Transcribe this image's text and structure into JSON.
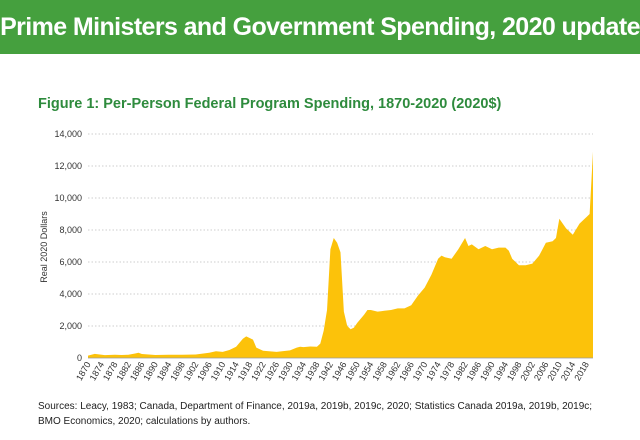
{
  "header": {
    "title": "Prime Ministers and Government Spending, 2020 update",
    "figure_title": "Figure 1: Per-Person Federal Program Spending, 1870-2020 (2020$)"
  },
  "sources": {
    "line1": "Sources: Leacy, 1983; Canada, Department of Finance, 2019a, 2019b, 2019c, 2020;  Statistics Canada 2019a, 2019b, 2019c;",
    "line2": "BMO Economics, 2020; calculations by authors."
  },
  "colors": {
    "banner": "#45a03e",
    "figure_title": "#2e8b3d",
    "area_fill": "#fcc20a",
    "grid": "#bfbfbf"
  },
  "chart_data": {
    "type": "area",
    "title": "Figure 1: Per-Person Federal Program Spending, 1870-2020 (2020$)",
    "xlabel": "",
    "ylabel": "Real 2020 Dollars",
    "xlim": [
      1870,
      2020
    ],
    "ylim": [
      0,
      14000
    ],
    "x_ticks": [
      "1870",
      "1874",
      "1878",
      "1882",
      "1886",
      "1890",
      "1894",
      "1898",
      "1902",
      "1906",
      "1910",
      "1914",
      "1918",
      "1922",
      "1926",
      "1930",
      "1934",
      "1938",
      "1942",
      "1946",
      "1950",
      "1954",
      "1958",
      "1962",
      "1966",
      "1970",
      "1974",
      "1978",
      "1982",
      "1986",
      "1990",
      "1994",
      "1998",
      "2002",
      "2006",
      "2010",
      "2014",
      "2018"
    ],
    "y_ticks": [
      "0",
      "2,000",
      "4,000",
      "6,000",
      "8,000",
      "10,000",
      "12,000",
      "14,000"
    ],
    "y_tick_values": [
      0,
      2000,
      4000,
      6000,
      8000,
      10000,
      12000,
      14000
    ],
    "grid": "horizontal dotted",
    "legend": "none",
    "x": [
      1870,
      1872,
      1875,
      1878,
      1880,
      1882,
      1884,
      1885,
      1886,
      1888,
      1890,
      1894,
      1898,
      1902,
      1906,
      1908,
      1910,
      1912,
      1914,
      1916,
      1917,
      1918,
      1919,
      1920,
      1922,
      1926,
      1930,
      1932,
      1933,
      1934,
      1936,
      1938,
      1939,
      1940,
      1941,
      1942,
      1943,
      1944,
      1945,
      1946,
      1947,
      1948,
      1949,
      1950,
      1952,
      1953,
      1954,
      1956,
      1958,
      1960,
      1962,
      1964,
      1966,
      1968,
      1970,
      1972,
      1974,
      1975,
      1976,
      1978,
      1980,
      1982,
      1983,
      1984,
      1986,
      1988,
      1990,
      1992,
      1994,
      1995,
      1996,
      1998,
      2000,
      2002,
      2004,
      2005,
      2006,
      2008,
      2009,
      2010,
      2012,
      2014,
      2016,
      2018,
      2019,
      2020
    ],
    "values": [
      150,
      260,
      180,
      200,
      190,
      200,
      280,
      330,
      250,
      220,
      190,
      200,
      200,
      220,
      330,
      420,
      380,
      500,
      700,
      1200,
      1350,
      1250,
      1150,
      650,
      450,
      380,
      480,
      650,
      700,
      680,
      720,
      700,
      900,
      1700,
      3000,
      6800,
      7500,
      7200,
      6600,
      2900,
      2000,
      1800,
      1900,
      2200,
      2700,
      3000,
      3000,
      2900,
      2950,
      3000,
      3100,
      3100,
      3300,
      3900,
      4400,
      5200,
      6200,
      6400,
      6300,
      6200,
      6800,
      7500,
      7000,
      7100,
      6800,
      7000,
      6800,
      6900,
      6900,
      6700,
      6200,
      5800,
      5800,
      5900,
      6400,
      6800,
      7200,
      7300,
      7500,
      8700,
      8100,
      7700,
      8400,
      8800,
      9000,
      12900
    ]
  }
}
